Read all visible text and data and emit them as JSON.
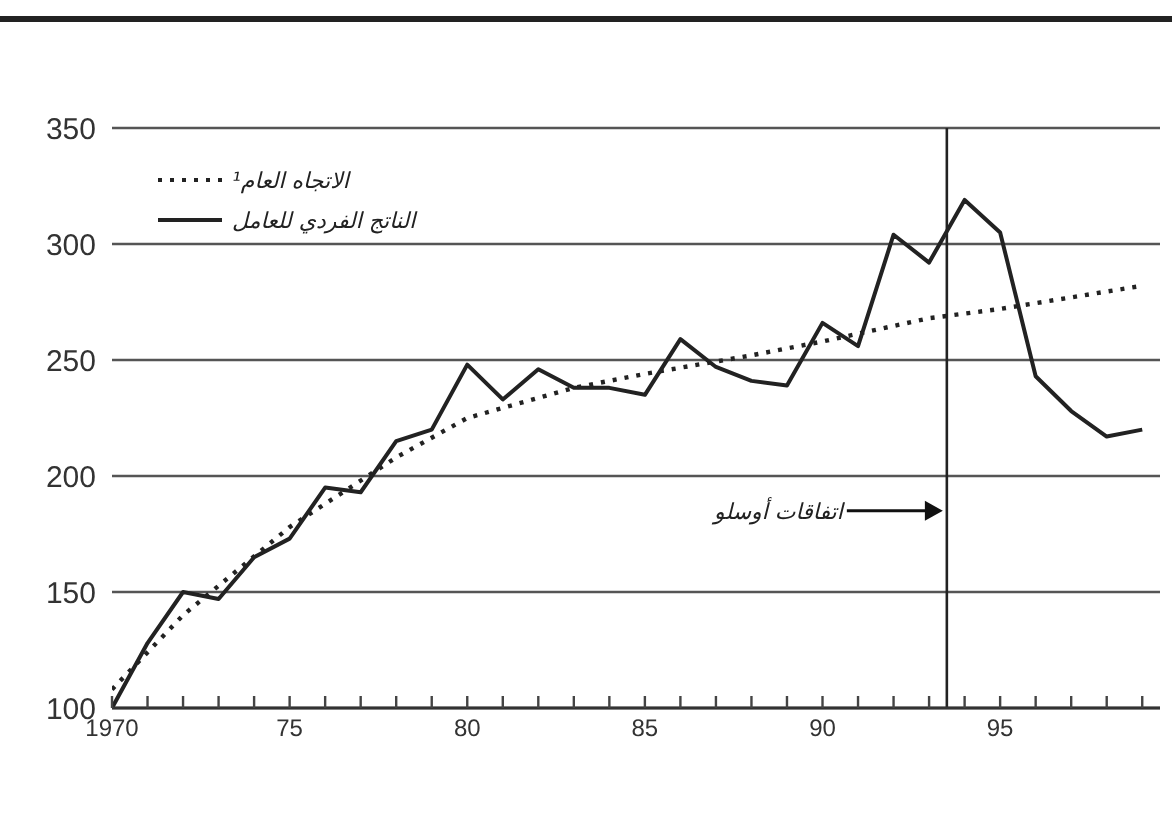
{
  "chart_data": {
    "type": "line",
    "x": [
      1970,
      1971,
      1972,
      1973,
      1974,
      1975,
      1976,
      1977,
      1978,
      1979,
      1980,
      1981,
      1982,
      1983,
      1984,
      1985,
      1986,
      1987,
      1988,
      1989,
      1990,
      1991,
      1992,
      1993,
      1994,
      1995,
      1996,
      1997,
      1998,
      1999
    ],
    "series": [
      {
        "name": "الاتجاه العام¹",
        "color": "#222222",
        "line_style": "dotted",
        "x": [
          1970,
          1972,
          1975,
          1978,
          1980,
          1983,
          1985,
          1988,
          1990,
          1993,
          1995,
          1999
        ],
        "values": [
          108,
          140,
          178,
          208,
          225,
          238,
          244,
          252,
          258,
          268,
          272,
          282
        ]
      },
      {
        "name": "الناتج الفردي للعامل",
        "color": "#222222",
        "line_style": "solid",
        "values": [
          100,
          128,
          150,
          147,
          165,
          173,
          195,
          193,
          215,
          220,
          248,
          233,
          246,
          238,
          238,
          235,
          259,
          247,
          241,
          239,
          266,
          256,
          304,
          292,
          319,
          305,
          243,
          228,
          217,
          220
        ]
      }
    ],
    "xlim": [
      1970,
      1999.5
    ],
    "xticks": [
      {
        "value": 1970,
        "label": "1970"
      },
      {
        "value": 1971,
        "label": null
      },
      {
        "value": 1972,
        "label": null
      },
      {
        "value": 1973,
        "label": null
      },
      {
        "value": 1974,
        "label": null
      },
      {
        "value": 1975,
        "label": "75"
      },
      {
        "value": 1976,
        "label": null
      },
      {
        "value": 1977,
        "label": null
      },
      {
        "value": 1978,
        "label": null
      },
      {
        "value": 1979,
        "label": null
      },
      {
        "value": 1980,
        "label": "80"
      },
      {
        "value": 1981,
        "label": null
      },
      {
        "value": 1982,
        "label": null
      },
      {
        "value": 1983,
        "label": null
      },
      {
        "value": 1984,
        "label": null
      },
      {
        "value": 1985,
        "label": "85"
      },
      {
        "value": 1986,
        "label": null
      },
      {
        "value": 1987,
        "label": null
      },
      {
        "value": 1988,
        "label": null
      },
      {
        "value": 1989,
        "label": null
      },
      {
        "value": 1990,
        "label": "90"
      },
      {
        "value": 1991,
        "label": null
      },
      {
        "value": 1992,
        "label": null
      },
      {
        "value": 1993,
        "label": null
      },
      {
        "value": 1994,
        "label": null
      },
      {
        "value": 1995,
        "label": "95"
      },
      {
        "value": 1996,
        "label": null
      },
      {
        "value": 1997,
        "label": null
      },
      {
        "value": 1998,
        "label": null
      },
      {
        "value": 1999,
        "label": null
      }
    ],
    "ylim": [
      100,
      350
    ],
    "yticks": [
      100,
      150,
      200,
      250,
      300,
      350
    ],
    "grid": "y",
    "legend": "top left",
    "marker": "none",
    "ref_lines": [
      {
        "axis": "x",
        "value": 1993.5,
        "label": "اتفاقات أوسلو",
        "color": "#222222"
      }
    ]
  }
}
